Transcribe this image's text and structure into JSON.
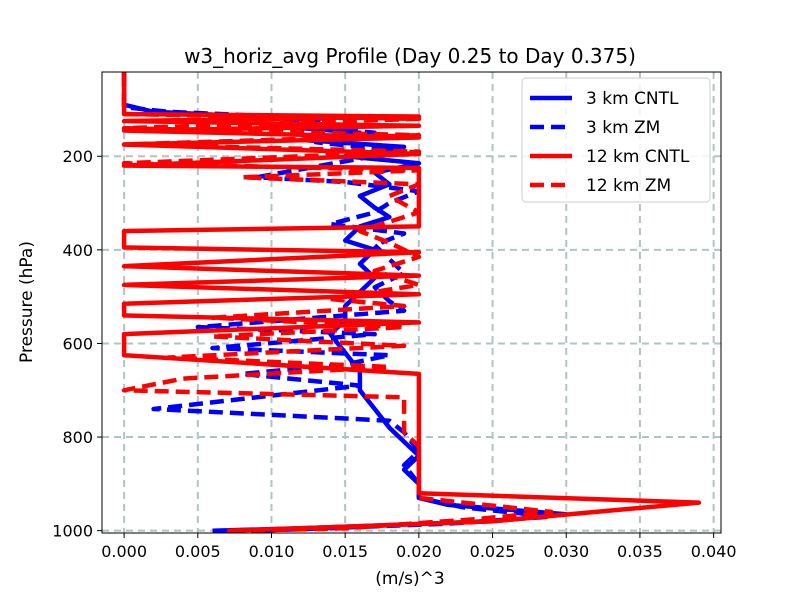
{
  "chart_data": {
    "type": "line",
    "title": "w3_horiz_avg Profile (Day 0.25 to Day 0.375)",
    "xlabel": "(m/s)^3",
    "ylabel": "Pressure (hPa)",
    "xlim": [
      -0.0015,
      0.0405
    ],
    "ylim": [
      1005,
      20
    ],
    "y_inverted": true,
    "grid": true,
    "legend_position": "upper-right",
    "x_ticks": [
      0.0,
      0.005,
      0.01,
      0.015,
      0.02,
      0.025,
      0.03,
      0.035,
      0.04
    ],
    "x_tick_labels": [
      "0.000",
      "0.005",
      "0.010",
      "0.015",
      "0.020",
      "0.025",
      "0.030",
      "0.035",
      "0.040"
    ],
    "y_ticks": [
      200,
      400,
      600,
      800,
      1000
    ],
    "y_tick_labels": [
      "200",
      "400",
      "600",
      "800",
      "1000"
    ],
    "series": [
      {
        "name": "3 km CNTL",
        "color": "#0000ff",
        "style": "solid",
        "points": [
          [
            0.0,
            20
          ],
          [
            0.0,
            90
          ],
          [
            0.002,
            105
          ],
          [
            0.012,
            120
          ],
          [
            0.01,
            135
          ],
          [
            0.016,
            150
          ],
          [
            0.012,
            165
          ],
          [
            0.019,
            180
          ],
          [
            0.015,
            200
          ],
          [
            0.02,
            215
          ],
          [
            0.017,
            235
          ],
          [
            0.018,
            260
          ],
          [
            0.016,
            285
          ],
          [
            0.017,
            310
          ],
          [
            0.018,
            330
          ],
          [
            0.016,
            350
          ],
          [
            0.015,
            380
          ],
          [
            0.017,
            400
          ],
          [
            0.016,
            430
          ],
          [
            0.017,
            460
          ],
          [
            0.016,
            490
          ],
          [
            0.015,
            520
          ],
          [
            0.015,
            550
          ],
          [
            0.014,
            580
          ],
          [
            0.015,
            620
          ],
          [
            0.016,
            660
          ],
          [
            0.016,
            700
          ],
          [
            0.017,
            740
          ],
          [
            0.018,
            780
          ],
          [
            0.019,
            810
          ],
          [
            0.02,
            840
          ],
          [
            0.019,
            870
          ],
          [
            0.02,
            900
          ],
          [
            0.02,
            930
          ],
          [
            0.022,
            945
          ],
          [
            0.03,
            965
          ],
          [
            0.025,
            980
          ],
          [
            0.012,
            995
          ],
          [
            0.006,
            1000
          ]
        ]
      },
      {
        "name": "3 km ZM",
        "color": "#0000ff",
        "style": "dashed",
        "points": [
          [
            0.0,
            20
          ],
          [
            0.0,
            95
          ],
          [
            0.003,
            105
          ],
          [
            0.014,
            120
          ],
          [
            0.012,
            135
          ],
          [
            0.017,
            150
          ],
          [
            0.013,
            170
          ],
          [
            0.019,
            190
          ],
          [
            0.016,
            205
          ],
          [
            0.009,
            245
          ],
          [
            0.015,
            255
          ],
          [
            0.02,
            275
          ],
          [
            0.018,
            300
          ],
          [
            0.017,
            320
          ],
          [
            0.014,
            345
          ],
          [
            0.019,
            365
          ],
          [
            0.017,
            390
          ],
          [
            0.018,
            420
          ],
          [
            0.019,
            450
          ],
          [
            0.017,
            480
          ],
          [
            0.018,
            510
          ],
          [
            0.019,
            530
          ],
          [
            0.005,
            565
          ],
          [
            0.017,
            580
          ],
          [
            0.006,
            610
          ],
          [
            0.018,
            625
          ],
          [
            0.015,
            645
          ],
          [
            0.008,
            665
          ],
          [
            0.016,
            690
          ],
          [
            0.002,
            740
          ],
          [
            0.018,
            765
          ],
          [
            0.019,
            790
          ],
          [
            0.02,
            830
          ],
          [
            0.019,
            860
          ],
          [
            0.02,
            900
          ],
          [
            0.02,
            930
          ],
          [
            0.023,
            950
          ],
          [
            0.029,
            970
          ],
          [
            0.022,
            985
          ],
          [
            0.009,
            1000
          ]
        ]
      },
      {
        "name": "12 km CNTL",
        "color": "#ff0000",
        "style": "solid",
        "points": [
          [
            0.0,
            20
          ],
          [
            0.0,
            110
          ],
          [
            0.02,
            115
          ],
          [
            0.0,
            125
          ],
          [
            0.02,
            135
          ],
          [
            0.0,
            145
          ],
          [
            0.02,
            160
          ],
          [
            0.0,
            175
          ],
          [
            0.02,
            195
          ],
          [
            0.0,
            220
          ],
          [
            0.02,
            225
          ],
          [
            0.02,
            350
          ],
          [
            0.0,
            360
          ],
          [
            0.0,
            395
          ],
          [
            0.02,
            405
          ],
          [
            0.0,
            435
          ],
          [
            0.02,
            455
          ],
          [
            0.0,
            475
          ],
          [
            0.02,
            495
          ],
          [
            0.0,
            515
          ],
          [
            0.0,
            540
          ],
          [
            0.02,
            555
          ],
          [
            0.0,
            580
          ],
          [
            0.0,
            625
          ],
          [
            0.02,
            665
          ],
          [
            0.02,
            920
          ],
          [
            0.039,
            940
          ],
          [
            0.032,
            960
          ],
          [
            0.025,
            980
          ],
          [
            0.012,
            995
          ],
          [
            0.007,
            1000
          ]
        ]
      },
      {
        "name": "12 km ZM",
        "color": "#ff0000",
        "style": "dashed",
        "points": [
          [
            0.0,
            20
          ],
          [
            0.0,
            110
          ],
          [
            0.02,
            120
          ],
          [
            0.0,
            140
          ],
          [
            0.02,
            155
          ],
          [
            0.0,
            175
          ],
          [
            0.02,
            190
          ],
          [
            0.0,
            215
          ],
          [
            0.02,
            230
          ],
          [
            0.008,
            245
          ],
          [
            0.02,
            260
          ],
          [
            0.018,
            285
          ],
          [
            0.02,
            320
          ],
          [
            0.016,
            360
          ],
          [
            0.018,
            385
          ],
          [
            0.02,
            415
          ],
          [
            0.017,
            445
          ],
          [
            0.02,
            475
          ],
          [
            0.014,
            505
          ],
          [
            0.019,
            520
          ],
          [
            0.006,
            545
          ],
          [
            0.019,
            565
          ],
          [
            0.006,
            585
          ],
          [
            0.019,
            605
          ],
          [
            0.003,
            630
          ],
          [
            0.018,
            650
          ],
          [
            0.004,
            675
          ],
          [
            0.0,
            700
          ],
          [
            0.019,
            715
          ],
          [
            0.019,
            790
          ],
          [
            0.02,
            820
          ],
          [
            0.02,
            930
          ],
          [
            0.029,
            960
          ],
          [
            0.024,
            975
          ],
          [
            0.015,
            995
          ],
          [
            0.008,
            1000
          ]
        ]
      }
    ]
  }
}
